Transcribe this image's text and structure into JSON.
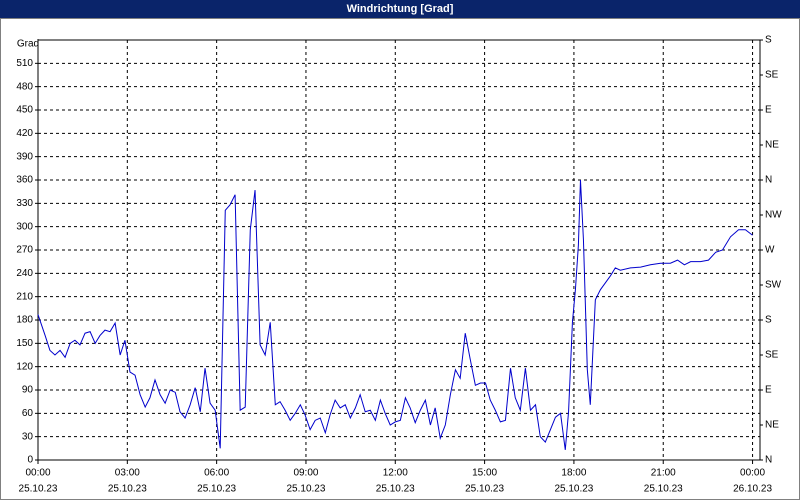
{
  "chart_data": {
    "type": "line",
    "title": "Windrichtung [Grad]",
    "y_label": "Grad",
    "x": [
      0,
      0.24,
      0.4,
      0.57,
      0.74,
      0.91,
      1.08,
      1.24,
      1.41,
      1.58,
      1.75,
      1.92,
      2.08,
      2.25,
      2.42,
      2.59,
      2.76,
      2.92,
      3.09,
      3.26,
      3.43,
      3.6,
      3.76,
      3.93,
      4.1,
      4.27,
      4.44,
      4.61,
      4.77,
      4.94,
      5.11,
      5.28,
      5.45,
      5.61,
      5.78,
      5.95,
      6.12,
      6.29,
      6.45,
      6.62,
      6.79,
      6.96,
      7.13,
      7.29,
      7.46,
      7.63,
      7.8,
      7.97,
      8.13,
      8.3,
      8.47,
      8.64,
      8.81,
      8.97,
      9.14,
      9.31,
      9.48,
      9.65,
      9.81,
      9.98,
      10.15,
      10.32,
      10.49,
      10.66,
      10.82,
      10.99,
      11.16,
      11.33,
      11.5,
      11.66,
      11.83,
      12.0,
      12.17,
      12.34,
      12.5,
      12.67,
      12.84,
      13.01,
      13.18,
      13.34,
      13.51,
      13.68,
      13.85,
      14.02,
      14.18,
      14.35,
      14.52,
      14.69,
      14.86,
      15.03,
      15.19,
      15.36,
      15.53,
      15.7,
      15.87,
      16.03,
      16.2,
      16.37,
      16.54,
      16.71,
      16.87,
      17.04,
      17.21,
      17.38,
      17.55,
      17.71,
      17.82,
      17.95,
      18.05,
      18.15,
      18.22,
      18.32,
      18.45,
      18.55,
      18.72,
      18.89,
      19.06,
      19.23,
      19.39,
      19.56,
      19.9,
      20.24,
      20.57,
      20.91,
      21.24,
      21.48,
      21.71,
      21.92,
      22.25,
      22.52,
      22.76,
      22.99,
      23.26,
      23.53,
      23.76,
      24.0
    ],
    "series": [
      {
        "color": "#0000cc",
        "values": [
          187,
          160,
          141,
          135,
          141,
          132,
          150,
          154,
          148,
          163,
          165,
          150,
          160,
          167,
          165,
          176,
          135,
          154,
          113,
          109,
          84,
          68,
          80,
          103,
          84,
          73,
          90,
          87,
          62,
          54,
          71,
          93,
          62,
          118,
          73,
          64,
          15,
          321,
          328,
          341,
          64,
          68,
          296,
          347,
          148,
          135,
          177,
          71,
          75,
          64,
          51,
          60,
          71,
          58,
          39,
          51,
          54,
          35,
          58,
          77,
          67,
          71,
          54,
          67,
          84,
          62,
          64,
          51,
          77,
          60,
          45,
          49,
          51,
          80,
          67,
          48,
          64,
          77,
          45,
          67,
          28,
          45,
          84,
          116,
          105,
          163,
          129,
          96,
          99,
          99,
          77,
          64,
          49,
          51,
          118,
          80,
          64,
          118,
          64,
          71,
          30,
          23,
          39,
          55,
          60,
          13,
          62,
          177,
          219,
          276,
          360,
          283,
          116,
          71,
          206,
          219,
          228,
          237,
          247,
          244,
          247,
          248,
          251,
          253,
          253,
          257,
          251,
          255,
          255,
          257,
          267,
          270,
          287,
          296,
          296,
          289
        ]
      }
    ],
    "xlim": [
      0,
      24.25
    ],
    "xticks": [
      {
        "value": 0,
        "label": "00:00"
      },
      {
        "value": 3,
        "label": "03:00"
      },
      {
        "value": 6,
        "label": "06:00"
      },
      {
        "value": 9,
        "label": "09:00"
      },
      {
        "value": 12,
        "label": "12:00"
      },
      {
        "value": 15,
        "label": "15:00"
      },
      {
        "value": 18,
        "label": "18:00"
      },
      {
        "value": 21,
        "label": "21:00"
      },
      {
        "value": 24,
        "label": "00:00"
      }
    ],
    "xtick_dates": [
      "25.10.23",
      "25.10.23",
      "25.10.23",
      "25.10.23",
      "25.10.23",
      "25.10.23",
      "25.10.23",
      "25.10.23",
      "26.10.23"
    ],
    "ylim": [
      0,
      540
    ],
    "yticks": [
      0,
      30,
      60,
      90,
      120,
      150,
      180,
      210,
      240,
      270,
      300,
      330,
      360,
      390,
      420,
      450,
      480,
      510
    ],
    "y2lim": [
      0,
      540
    ],
    "y2ticks": [
      {
        "value": 0,
        "label": "N"
      },
      {
        "value": 45,
        "label": "NE"
      },
      {
        "value": 90,
        "label": "E"
      },
      {
        "value": 135,
        "label": "SE"
      },
      {
        "value": 180,
        "label": "S"
      },
      {
        "value": 225,
        "label": "SW"
      },
      {
        "value": 270,
        "label": "W"
      },
      {
        "value": 315,
        "label": "NW"
      },
      {
        "value": 360,
        "label": "N"
      },
      {
        "value": 405,
        "label": "NE"
      },
      {
        "value": 450,
        "label": "E"
      },
      {
        "value": 495,
        "label": "SE"
      },
      {
        "value": 540,
        "label": "S"
      }
    ],
    "grid": true
  }
}
